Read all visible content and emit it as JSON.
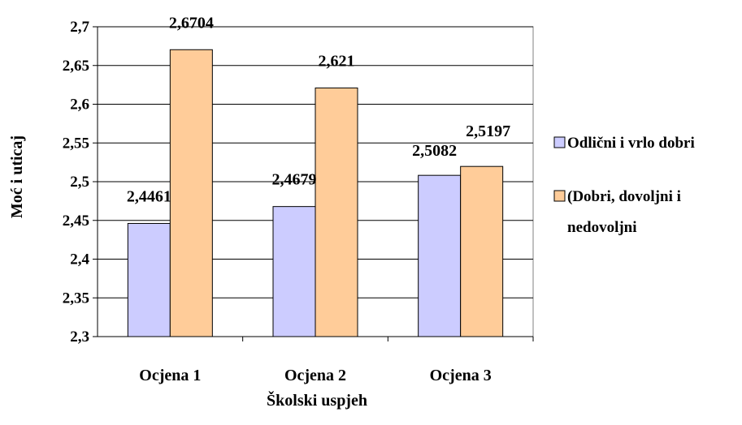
{
  "chart_data": {
    "type": "bar",
    "categories": [
      "Ocjena 1",
      "Ocjena 2",
      "Ocjena 3"
    ],
    "series": [
      {
        "name": "Odlični i vrlo dobri",
        "values": [
          2.4461,
          2.4679,
          2.5082
        ],
        "labels": [
          "2,4461",
          "2,4679",
          "2,5082"
        ],
        "color": "#ccccff"
      },
      {
        "name": "(Dobri, dovoljni i nedovoljni",
        "values": [
          2.6704,
          2.621,
          2.5197
        ],
        "labels": [
          "2,6704",
          "2,621",
          "2,5197"
        ],
        "color": "#ffcc99"
      }
    ],
    "title": "",
    "xlabel": "Školski uspjeh",
    "ylabel": "Moć i uticaj",
    "ylim": [
      2.3,
      2.7
    ],
    "yticks": [
      2.3,
      2.35,
      2.4,
      2.45,
      2.5,
      2.55,
      2.6,
      2.65,
      2.7
    ],
    "ytick_labels": [
      "2,3",
      "2,35",
      "2,4",
      "2,45",
      "2,5",
      "2,55",
      "2,6",
      "2,65",
      "2,7"
    ],
    "grid": true,
    "legend_position": "right",
    "legend_lines": [
      [
        "Odlični i vrlo dobri"
      ],
      [
        "(Dobri, dovoljni i",
        "nedovoljni"
      ]
    ]
  }
}
